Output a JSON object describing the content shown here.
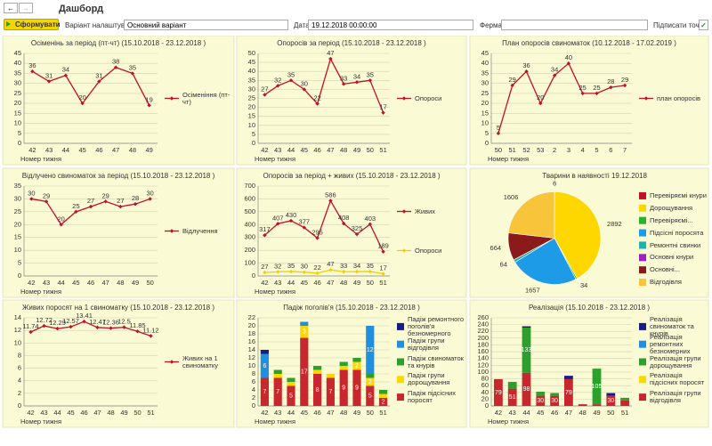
{
  "header": {
    "title": "Дашборд",
    "button": "Сформувати",
    "variant_label": "Варіант налаштування:",
    "variant_value": "Основний варіант",
    "date_label": "Дата:",
    "date_value": "19.12.2018 00:00:00",
    "farm_label": "Ферма:",
    "sign_label": "Підписати точки:",
    "sign_points": true
  },
  "chart_data": [
    {
      "type": "line",
      "title": "Осіменінь за період (пт-чт) (15.10.2018 - 23.12.2018 )",
      "xlabel": "Номер тижня",
      "categories": [
        "42",
        "43",
        "44",
        "45",
        "46",
        "47",
        "48",
        "49"
      ],
      "series": [
        {
          "name": "Осіменіння (пт-чт)",
          "color": "#c0102a",
          "values": [
            36,
            31,
            34,
            20,
            31,
            38,
            35,
            19
          ]
        }
      ],
      "ylim": [
        0,
        45
      ],
      "yticks": [
        0,
        5,
        10,
        15,
        20,
        25,
        30,
        35,
        40,
        45
      ],
      "grid": true,
      "legend": "right"
    },
    {
      "type": "line",
      "title": "Опоросів за період (15.10.2018 - 23.12.2018 )",
      "xlabel": "Номер тижня",
      "categories": [
        "42",
        "43",
        "44",
        "45",
        "46",
        "47",
        "48",
        "49",
        "50",
        "51"
      ],
      "series": [
        {
          "name": "Опороси",
          "color": "#c0102a",
          "values": [
            27,
            32,
            35,
            30,
            22,
            47,
            33,
            34,
            35,
            17
          ]
        }
      ],
      "ylim": [
        0,
        50
      ],
      "yticks": [
        0,
        5,
        10,
        15,
        20,
        25,
        30,
        35,
        40,
        45,
        50
      ],
      "grid": true,
      "legend": "right"
    },
    {
      "type": "line",
      "title": "План опоросів свиноматок (10.12.2018 - 17.02.2019 )",
      "xlabel": "Номер тижня",
      "categories": [
        "50",
        "51",
        "52",
        "53",
        "2",
        "3",
        "4",
        "5",
        "6",
        "7"
      ],
      "series": [
        {
          "name": "план опоросів",
          "color": "#c0102a",
          "values": [
            5,
            29,
            36,
            20,
            34,
            40,
            25,
            25,
            28,
            29
          ]
        }
      ],
      "ylim": [
        0,
        45
      ],
      "yticks": [
        0,
        5,
        10,
        15,
        20,
        25,
        30,
        35,
        40,
        45
      ],
      "grid": true,
      "legend": "right"
    },
    {
      "type": "line",
      "title": "Відлучено свиноматок за період (15.10.2018 - 23.12.2018 )",
      "xlabel": "Номер тижня",
      "categories": [
        "42",
        "43",
        "44",
        "45",
        "46",
        "47",
        "48",
        "49",
        "50"
      ],
      "series": [
        {
          "name": "Відлучення",
          "color": "#c0102a",
          "values": [
            30,
            29,
            20,
            25,
            27,
            29,
            27,
            28,
            30
          ]
        }
      ],
      "ylim": [
        0,
        35
      ],
      "yticks": [
        0,
        5,
        10,
        15,
        20,
        25,
        30,
        35
      ],
      "grid": true,
      "legend": "right"
    },
    {
      "type": "line",
      "title": "Опоросів за період + живих (15.10.2018 - 23.12.2018 )",
      "xlabel": "Номер тижня",
      "categories": [
        "42",
        "43",
        "44",
        "45",
        "46",
        "47",
        "48",
        "49",
        "50",
        "51"
      ],
      "series": [
        {
          "name": "Живих",
          "color": "#c0102a",
          "values": [
            317,
            407,
            430,
            377,
            295,
            586,
            408,
            325,
            403,
            189
          ]
        },
        {
          "name": "Опороси",
          "color": "#f0d000",
          "values": [
            27,
            32,
            35,
            30,
            22,
            47,
            33,
            34,
            35,
            17
          ]
        }
      ],
      "ylim": [
        0,
        700
      ],
      "yticks": [
        0,
        100,
        200,
        300,
        400,
        500,
        600,
        700
      ],
      "grid": true,
      "legend": "right"
    },
    {
      "type": "pie",
      "title": "Тварини в наявності",
      "date": "19.12.2018",
      "categories": [
        "Перевіряємі кнури",
        "Дорощування",
        "Перевіряємі...",
        "Підсісні поросята",
        "Ремонтні свинки",
        "Основні кнури",
        "Основні...",
        "Відгодівля"
      ],
      "values": [
        6,
        2892,
        34,
        1657,
        64,
        null,
        664,
        1606
      ],
      "colors": [
        "#c0102a",
        "#ffd700",
        "#2cb02c",
        "#1e9be6",
        "#20b0a8",
        "#a020c0",
        "#8b1a1a",
        "#f7c43a"
      ],
      "legend": "right"
    },
    {
      "type": "line",
      "title": "Живих поросят на 1 свиноматку (15.10.2018 - 23.12.2018 )",
      "xlabel": "Номер тижня",
      "categories": [
        "42",
        "43",
        "44",
        "45",
        "46",
        "47",
        "48",
        "49",
        "50",
        "51"
      ],
      "series": [
        {
          "name": "Живих на 1 свиноматку",
          "color": "#c0102a",
          "values": [
            11.74,
            12.72,
            12.29,
            12.57,
            13.41,
            12.47,
            12.36,
            12.5,
            11.85,
            11.12
          ]
        }
      ],
      "ylim": [
        0,
        14
      ],
      "yticks": [
        0,
        2,
        4,
        6,
        8,
        10,
        12,
        14
      ],
      "grid": true,
      "legend": "right"
    },
    {
      "type": "bar",
      "stacked": true,
      "title": "Падіж поголів'я (15.10.2018 - 23.12.2018 )",
      "xlabel": "Номер тижня",
      "categories": [
        "42",
        "43",
        "44",
        "45",
        "46",
        "47",
        "48",
        "49",
        "50",
        "51"
      ],
      "series": [
        {
          "name": "Падіж підсісних поросят",
          "color": "#c8282d",
          "values": [
            7,
            7,
            5,
            17,
            8,
            7,
            9,
            9,
            5,
            2
          ]
        },
        {
          "name": "Падіж групи дорощування",
          "color": "#ffd700",
          "values": [
            0,
            1,
            1,
            3,
            1,
            1,
            1,
            2,
            2,
            1
          ]
        },
        {
          "name": "Падіж свиноматок та кнурів",
          "color": "#2ca02c",
          "values": [
            0,
            1,
            1,
            0,
            1,
            0,
            1,
            1,
            1,
            1
          ]
        },
        {
          "name": "Падіж групи відгодівля",
          "color": "#1e90e0",
          "values": [
            6,
            0,
            0,
            1,
            0,
            0,
            0,
            0,
            12,
            0
          ]
        },
        {
          "name": "Падіж ремонтного поголів'я безномерного",
          "color": "#1a1a8c",
          "values": [
            1,
            0,
            0,
            0,
            0,
            0,
            0,
            0,
            0,
            0
          ]
        }
      ],
      "ylim": [
        0,
        22
      ],
      "yticks": [
        0,
        2,
        4,
        6,
        8,
        10,
        12,
        14,
        16,
        18,
        20,
        22
      ],
      "grid": true,
      "legend": "right"
    },
    {
      "type": "bar",
      "stacked": true,
      "title": "Реалізація (15.10.2018 - 23.12.2018 )",
      "xlabel": "Номер тижня",
      "categories": [
        "42",
        "43",
        "44",
        "45",
        "46",
        "47",
        "48",
        "49",
        "50",
        "51"
      ],
      "series": [
        {
          "name": "Реалізація групи відгодівля",
          "color": "#c8282d",
          "values": [
            79,
            51,
            98,
            30,
            30,
            79,
            5,
            5,
            30,
            16
          ]
        },
        {
          "name": "Реалізація підсісних поросят",
          "color": "#ffd700",
          "values": [
            0,
            0,
            0,
            0,
            0,
            0,
            0,
            0,
            0,
            0
          ]
        },
        {
          "name": "Реалізація групи дорощування",
          "color": "#2ca02c",
          "values": [
            0,
            20,
            133,
            12,
            8,
            0,
            0,
            105,
            0,
            8
          ]
        },
        {
          "name": "Реалізація ремонтних безномерних",
          "color": "#1e90e0",
          "values": [
            0,
            0,
            0,
            0,
            0,
            0,
            0,
            0,
            0,
            0
          ]
        },
        {
          "name": "Реалізація свиноматок та кнурів",
          "color": "#1a1a8c",
          "values": [
            0,
            0,
            4,
            0,
            0,
            10,
            0,
            0,
            8,
            0
          ]
        }
      ],
      "ylim": [
        0,
        260
      ],
      "yticks": [
        0,
        20,
        40,
        60,
        80,
        100,
        120,
        140,
        160,
        180,
        200,
        220,
        240,
        260
      ],
      "grid": true,
      "legend": "right"
    }
  ]
}
